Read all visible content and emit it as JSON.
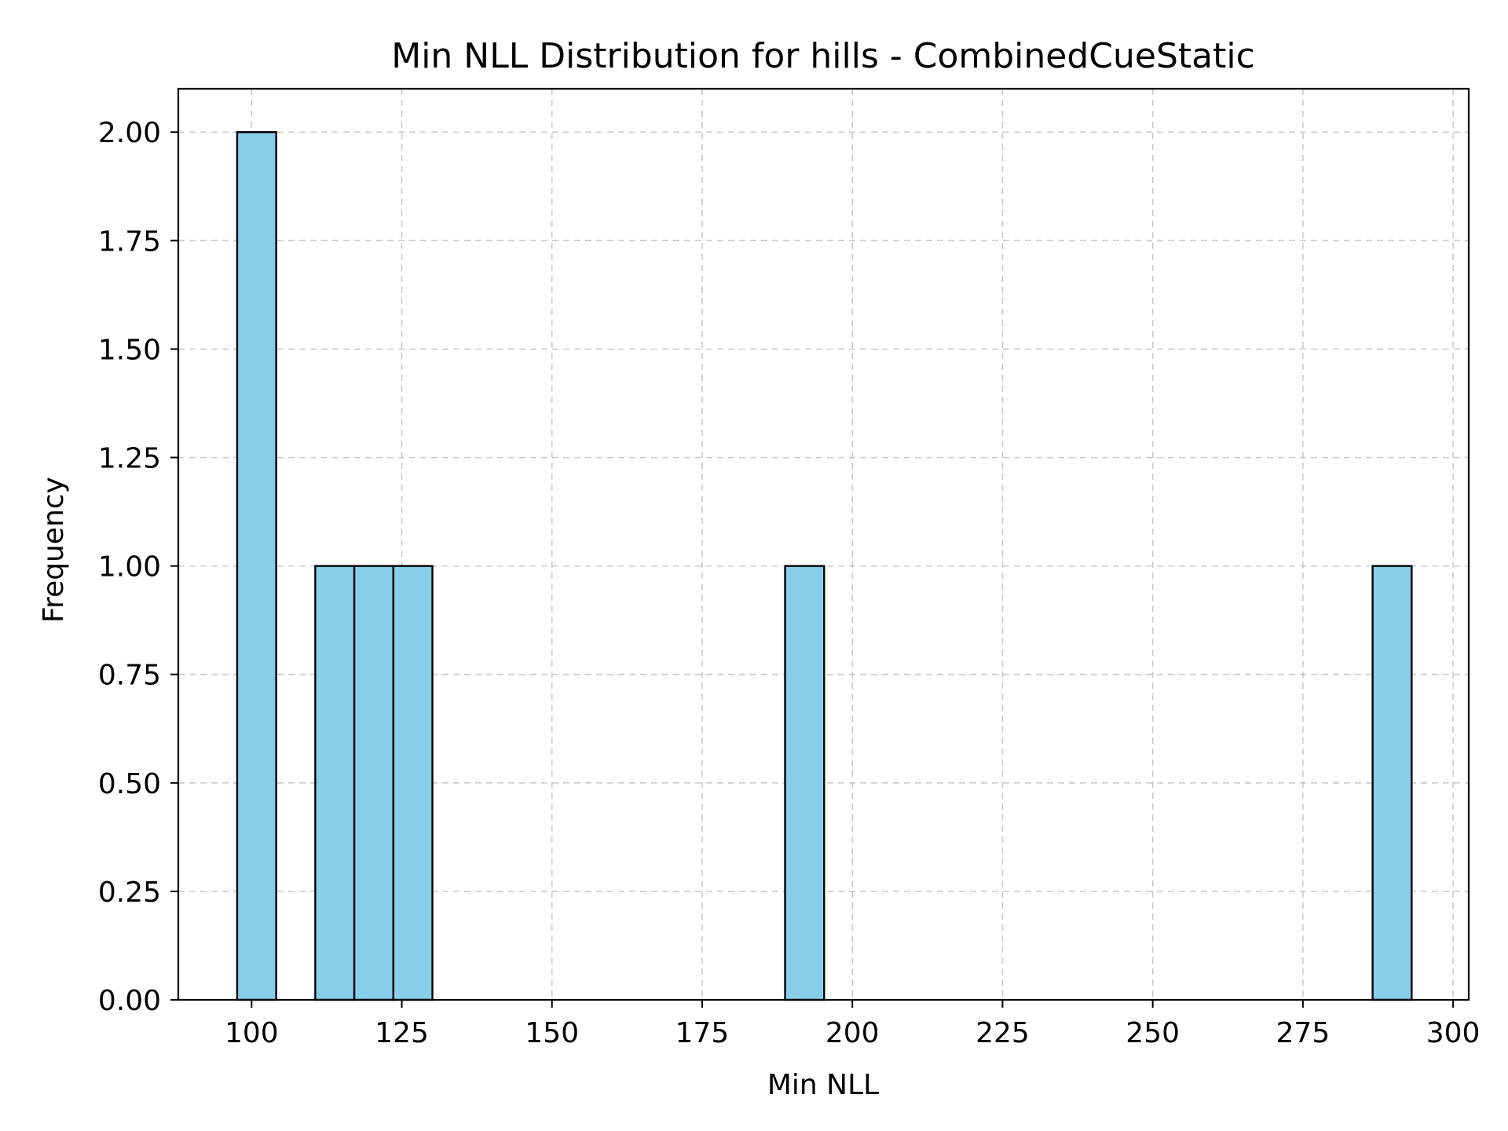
{
  "chart_data": {
    "type": "bar",
    "title": "Min NLL Distribution for hills - CombinedCueStatic",
    "xlabel": "Min NLL",
    "ylabel": "Frequency",
    "xlim": [
      87.8,
      302.6
    ],
    "ylim": [
      0,
      2.1
    ],
    "xticks": [
      100,
      125,
      150,
      175,
      200,
      225,
      250,
      275,
      300
    ],
    "xtick_labels": [
      "100",
      "125",
      "150",
      "175",
      "200",
      "225",
      "250",
      "275",
      "300"
    ],
    "yticks": [
      0,
      0.25,
      0.5,
      0.75,
      1.0,
      1.25,
      1.5,
      1.75,
      2.0
    ],
    "ytick_labels": [
      "0.00",
      "0.25",
      "0.50",
      "0.75",
      "1.00",
      "1.25",
      "1.50",
      "1.75",
      "2.00"
    ],
    "grid": true,
    "bar_color": "#87CEEB",
    "edge_color": "#000000",
    "bins": [
      {
        "start": 97.6,
        "end": 104.1,
        "count": 2
      },
      {
        "start": 110.6,
        "end": 117.1,
        "count": 1
      },
      {
        "start": 117.1,
        "end": 123.6,
        "count": 1
      },
      {
        "start": 123.6,
        "end": 130.1,
        "count": 1
      },
      {
        "start": 188.8,
        "end": 195.3,
        "count": 1
      },
      {
        "start": 286.6,
        "end": 293.1,
        "count": 1
      }
    ]
  }
}
